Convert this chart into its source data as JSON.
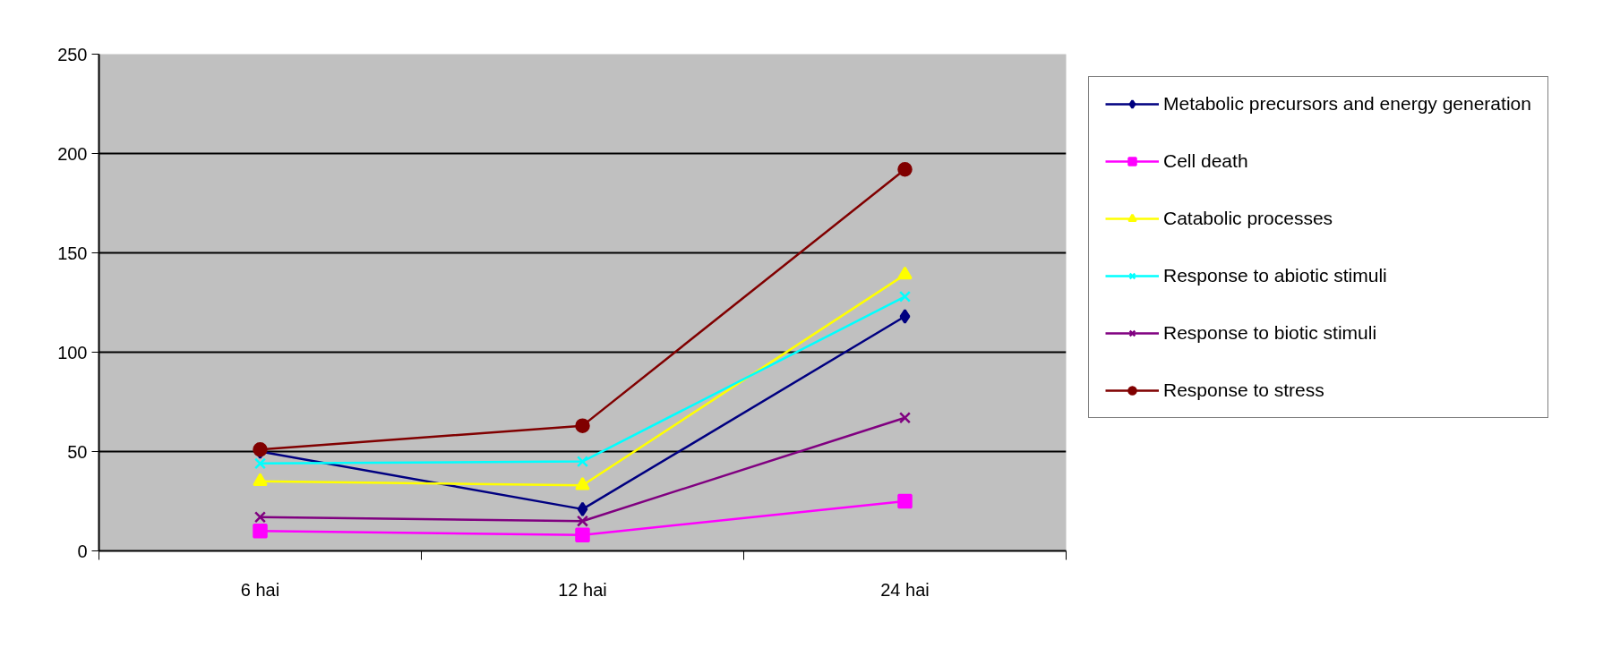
{
  "chart_data": {
    "type": "line",
    "categories": [
      "6 hai",
      "12 hai",
      "24 hai"
    ],
    "ylim": [
      0,
      250
    ],
    "yticks": [
      0,
      50,
      100,
      150,
      200,
      250
    ],
    "grid": "y",
    "legend": "right",
    "line_style": "solid",
    "series": [
      {
        "name": "Metabolic precursors and energy generation",
        "color": "#000080",
        "marker": "diamond",
        "values": [
          50,
          21,
          118
        ]
      },
      {
        "name": "Cell death",
        "color": "#ff00ff",
        "marker": "square",
        "values": [
          10,
          8,
          25
        ]
      },
      {
        "name": "Catabolic processes",
        "color": "#ffff00",
        "marker": "triangle",
        "values": [
          35,
          33,
          139
        ]
      },
      {
        "name": "Response to abiotic stimuli",
        "color": "#00ffff",
        "marker": "cross",
        "values": [
          44,
          45,
          128
        ]
      },
      {
        "name": "Response to biotic stimuli",
        "color": "#800080",
        "marker": "cross",
        "values": [
          17,
          15,
          67
        ]
      },
      {
        "name": "Response to stress",
        "color": "#800000",
        "marker": "circle",
        "values": [
          51,
          63,
          192
        ]
      }
    ]
  }
}
